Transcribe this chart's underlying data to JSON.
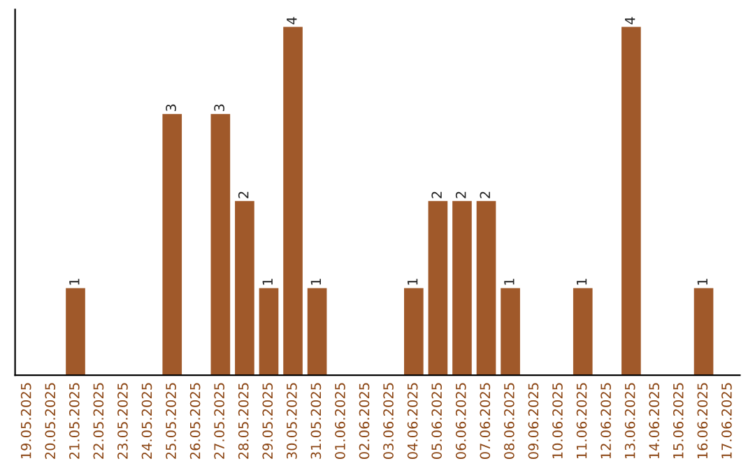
{
  "chart_data": {
    "type": "bar",
    "categories": [
      "19.05.2025",
      "20.05.2025",
      "21.05.2025",
      "22.05.2025",
      "23.05.2025",
      "24.05.2025",
      "25.05.2025",
      "26.05.2025",
      "27.05.2025",
      "28.05.2025",
      "29.05.2025",
      "30.05.2025",
      "31.05.2025",
      "01.06.2025",
      "02.06.2025",
      "03.06.2025",
      "04.06.2025",
      "05.06.2025",
      "06.06.2025",
      "07.06.2025",
      "08.06.2025",
      "09.06.2025",
      "10.06.2025",
      "11.06.2025",
      "12.06.2025",
      "13.06.2025",
      "14.06.2025",
      "15.06.2025",
      "16.06.2025",
      "17.06.2025"
    ],
    "values": [
      0,
      0,
      1,
      0,
      0,
      0,
      3,
      0,
      3,
      2,
      1,
      4,
      1,
      0,
      0,
      0,
      1,
      2,
      2,
      2,
      1,
      0,
      0,
      1,
      0,
      4,
      0,
      0,
      1,
      0
    ],
    "value_labels": [
      null,
      null,
      "1",
      null,
      null,
      null,
      "3",
      null,
      "3",
      "2",
      "1",
      "4",
      "1",
      null,
      null,
      null,
      "1",
      "2",
      "2",
      "2",
      "1",
      null,
      null,
      "1",
      null,
      "4",
      null,
      null,
      "1",
      null
    ],
    "color": "#a0592a",
    "ylim": [
      0,
      4.2
    ],
    "tick_labels": "x",
    "grid": false,
    "legend": false
  }
}
